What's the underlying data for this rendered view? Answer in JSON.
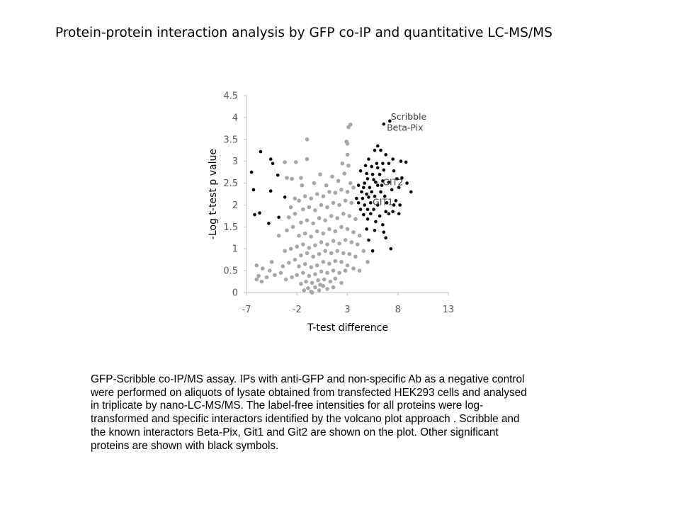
{
  "slide": {
    "title": "Protein-protein interaction analysis by GFP co-IP and quantitative LC-MS/MS",
    "caption_lines": [
      "GFP-Scribble co-IP/MS assay. IPs with anti-GFP and non-specific Ab as a negative control",
      "were performed on aliquots of lysate obtained from transfected HEK293 cells and analysed",
      "in triplicate by nano-LC-MS/MS. The label-free intensities for all proteins were log-",
      "transformed and specific interactors identified by the volcano plot approach . Scribble and",
      "the known interactors Beta-Pix, Git1 and Git2 are shown on the plot. Other significant",
      "proteins are shown with black symbols."
    ]
  },
  "chart_data": {
    "type": "scatter",
    "title": "",
    "xlabel": "T-test difference",
    "ylabel": "-Log t-test p value",
    "xlim": [
      -7,
      13
    ],
    "ylim": [
      0,
      4.5
    ],
    "x_ticks": [
      "-7",
      "-2",
      "3",
      "8",
      "13"
    ],
    "y_ticks": [
      "0",
      "0.5",
      "1",
      "1.5",
      "2",
      "2.5",
      "3",
      "3.5",
      "4",
      "4.5"
    ],
    "grid": false,
    "legend": "none",
    "colors": {
      "significant": "#000000",
      "non_significant": "#a6a6a6",
      "axis": "#bfbfbf"
    },
    "annotations": [
      {
        "text": "Scribble",
        "x": 7.3,
        "y": 3.95
      },
      {
        "text": "Beta-Pix",
        "x": 6.9,
        "y": 3.7
      },
      {
        "text": "GIT2",
        "x": 6.5,
        "y": 2.45
      },
      {
        "text": "GIT1",
        "x": 5.5,
        "y": 2.0
      }
    ],
    "series": [
      {
        "name": "significant",
        "points": [
          [
            7.2,
            3.92
          ],
          [
            6.6,
            3.85
          ],
          [
            6.0,
            3.35
          ],
          [
            5.7,
            3.25
          ],
          [
            6.3,
            3.25
          ],
          [
            6.8,
            3.15
          ],
          [
            7.5,
            3.05
          ],
          [
            8.3,
            3.0
          ],
          [
            8.8,
            2.98
          ],
          [
            5.1,
            3.05
          ],
          [
            5.9,
            2.95
          ],
          [
            6.5,
            2.95
          ],
          [
            7.1,
            2.95
          ],
          [
            4.8,
            2.9
          ],
          [
            5.4,
            2.88
          ],
          [
            6.0,
            2.85
          ],
          [
            6.6,
            2.8
          ],
          [
            4.3,
            2.78
          ],
          [
            4.9,
            2.72
          ],
          [
            5.5,
            2.7
          ],
          [
            6.2,
            2.7
          ],
          [
            7.6,
            2.78
          ],
          [
            5.0,
            2.6
          ],
          [
            5.6,
            2.58
          ],
          [
            4.7,
            2.5
          ],
          [
            5.8,
            2.52
          ],
          [
            6.5,
            2.55
          ],
          [
            7.1,
            2.52
          ],
          [
            7.9,
            2.6
          ],
          [
            8.4,
            2.62
          ],
          [
            8.9,
            2.5
          ],
          [
            9.3,
            2.3
          ],
          [
            4.1,
            2.45
          ],
          [
            4.6,
            2.4
          ],
          [
            5.2,
            2.4
          ],
          [
            6.0,
            2.45
          ],
          [
            6.4,
            2.45
          ],
          [
            4.4,
            2.3
          ],
          [
            4.9,
            2.25
          ],
          [
            5.4,
            2.3
          ],
          [
            6.3,
            2.3
          ],
          [
            7.4,
            2.35
          ],
          [
            8.1,
            2.4
          ],
          [
            3.9,
            2.15
          ],
          [
            4.5,
            2.15
          ],
          [
            5.1,
            2.18
          ],
          [
            5.7,
            2.2
          ],
          [
            6.7,
            2.2
          ],
          [
            7.8,
            2.1
          ],
          [
            4.1,
            2.05
          ],
          [
            4.7,
            2.0
          ],
          [
            5.3,
            2.05
          ],
          [
            6.0,
            2.0
          ],
          [
            6.9,
            2.05
          ],
          [
            7.6,
            2.0
          ],
          [
            8.2,
            2.0
          ],
          [
            4.3,
            1.9
          ],
          [
            5.0,
            1.9
          ],
          [
            5.6,
            1.9
          ],
          [
            6.8,
            1.85
          ],
          [
            7.5,
            1.85
          ],
          [
            4.6,
            1.78
          ],
          [
            5.3,
            1.8
          ],
          [
            6.2,
            1.75
          ],
          [
            7.1,
            1.8
          ],
          [
            8.1,
            1.8
          ],
          [
            5.0,
            1.68
          ],
          [
            5.8,
            1.62
          ],
          [
            6.5,
            1.55
          ],
          [
            4.9,
            1.45
          ],
          [
            5.7,
            1.42
          ],
          [
            6.6,
            1.38
          ],
          [
            5.1,
            1.2
          ],
          [
            6.8,
            1.25
          ],
          [
            5.5,
            0.95
          ],
          [
            7.3,
            1.0
          ],
          [
            -5.6,
            3.22
          ],
          [
            -4.6,
            3.05
          ],
          [
            -4.4,
            2.95
          ],
          [
            -6.5,
            2.75
          ],
          [
            -3.9,
            2.68
          ],
          [
            -6.3,
            2.35
          ],
          [
            -4.6,
            2.32
          ],
          [
            -3.2,
            2.18
          ],
          [
            -6.2,
            1.78
          ],
          [
            -5.7,
            1.82
          ],
          [
            -4.8,
            1.58
          ],
          [
            -3.8,
            1.72
          ]
        ]
      },
      {
        "name": "non_significant",
        "points": [
          [
            -1.3,
            0.05
          ],
          [
            -0.9,
            0.1
          ],
          [
            -0.6,
            0.02
          ],
          [
            -0.2,
            0.12
          ],
          [
            0.2,
            0.05
          ],
          [
            0.6,
            0.15
          ],
          [
            1.0,
            0.08
          ],
          [
            -1.6,
            0.2
          ],
          [
            -1.1,
            0.25
          ],
          [
            -0.5,
            0.22
          ],
          [
            0.1,
            0.28
          ],
          [
            0.7,
            0.3
          ],
          [
            1.3,
            0.25
          ],
          [
            1.8,
            0.32
          ],
          [
            -2.0,
            0.4
          ],
          [
            -1.4,
            0.45
          ],
          [
            -0.8,
            0.38
          ],
          [
            -0.2,
            0.42
          ],
          [
            0.4,
            0.48
          ],
          [
            1.0,
            0.45
          ],
          [
            1.6,
            0.5
          ],
          [
            2.2,
            0.45
          ],
          [
            2.8,
            0.5
          ],
          [
            -2.5,
            0.35
          ],
          [
            -3.1,
            0.3
          ],
          [
            -3.6,
            0.45
          ],
          [
            -4.2,
            0.4
          ],
          [
            -4.7,
            0.5
          ],
          [
            -5.0,
            0.35
          ],
          [
            -5.4,
            0.55
          ],
          [
            -5.8,
            0.38
          ],
          [
            -6.0,
            0.62
          ],
          [
            -1.8,
            0.6
          ],
          [
            -1.2,
            0.65
          ],
          [
            -0.6,
            0.58
          ],
          [
            0.0,
            0.62
          ],
          [
            0.6,
            0.7
          ],
          [
            1.2,
            0.66
          ],
          [
            1.8,
            0.72
          ],
          [
            2.4,
            0.7
          ],
          [
            3.0,
            0.62
          ],
          [
            3.6,
            0.55
          ],
          [
            4.2,
            0.5
          ],
          [
            -2.2,
            0.75
          ],
          [
            -2.8,
            0.68
          ],
          [
            -3.4,
            0.6
          ],
          [
            -1.6,
            0.85
          ],
          [
            -1.0,
            0.9
          ],
          [
            -0.4,
            0.82
          ],
          [
            0.2,
            0.88
          ],
          [
            0.8,
            0.95
          ],
          [
            1.4,
            0.9
          ],
          [
            2.0,
            0.95
          ],
          [
            2.6,
            0.9
          ],
          [
            3.2,
            0.88
          ],
          [
            3.8,
            0.82
          ],
          [
            -2.0,
            1.05
          ],
          [
            -1.4,
            1.1
          ],
          [
            -0.8,
            1.02
          ],
          [
            -0.2,
            1.08
          ],
          [
            0.4,
            1.15
          ],
          [
            1.0,
            1.1
          ],
          [
            1.6,
            1.18
          ],
          [
            2.2,
            1.12
          ],
          [
            2.8,
            1.2
          ],
          [
            3.4,
            1.15
          ],
          [
            -2.6,
            1.0
          ],
          [
            -3.2,
            0.95
          ],
          [
            -1.8,
            1.3
          ],
          [
            -1.2,
            1.35
          ],
          [
            -0.6,
            1.28
          ],
          [
            0.0,
            1.4
          ],
          [
            0.6,
            1.35
          ],
          [
            1.2,
            1.45
          ],
          [
            1.8,
            1.4
          ],
          [
            2.4,
            1.5
          ],
          [
            3.0,
            1.45
          ],
          [
            3.6,
            1.38
          ],
          [
            4.2,
            1.3
          ],
          [
            -2.4,
            1.5
          ],
          [
            -3.0,
            1.42
          ],
          [
            -3.8,
            1.3
          ],
          [
            -1.6,
            1.6
          ],
          [
            -1.0,
            1.65
          ],
          [
            -0.4,
            1.58
          ],
          [
            0.2,
            1.7
          ],
          [
            0.8,
            1.65
          ],
          [
            1.4,
            1.75
          ],
          [
            2.0,
            1.7
          ],
          [
            2.6,
            1.8
          ],
          [
            3.2,
            1.75
          ],
          [
            3.8,
            1.68
          ],
          [
            -2.2,
            1.8
          ],
          [
            -2.8,
            1.72
          ],
          [
            -1.4,
            1.9
          ],
          [
            -0.8,
            1.95
          ],
          [
            -0.2,
            1.88
          ],
          [
            0.4,
            2.0
          ],
          [
            1.0,
            1.95
          ],
          [
            1.6,
            2.05
          ],
          [
            2.2,
            2.0
          ],
          [
            2.8,
            2.1
          ],
          [
            3.4,
            2.05
          ],
          [
            -1.8,
            2.1
          ],
          [
            -1.2,
            2.2
          ],
          [
            -0.6,
            2.15
          ],
          [
            0.0,
            2.25
          ],
          [
            0.6,
            2.2
          ],
          [
            1.2,
            2.3
          ],
          [
            1.8,
            2.28
          ],
          [
            2.4,
            2.35
          ],
          [
            3.0,
            2.3
          ],
          [
            3.6,
            2.4
          ],
          [
            -1.5,
            2.45
          ],
          [
            -0.3,
            2.5
          ],
          [
            0.9,
            2.45
          ],
          [
            2.1,
            2.55
          ],
          [
            3.3,
            2.5
          ],
          [
            -2.5,
            2.6
          ],
          [
            -1.6,
            2.62
          ],
          [
            0.3,
            2.7
          ],
          [
            1.5,
            2.65
          ],
          [
            2.7,
            2.72
          ],
          [
            3.1,
            2.9
          ],
          [
            2.5,
            2.95
          ],
          [
            -2.1,
            2.98
          ],
          [
            -3.2,
            2.98
          ],
          [
            -1.0,
            3.05
          ],
          [
            3.0,
            3.15
          ],
          [
            -3.0,
            2.62
          ],
          [
            -1.0,
            3.5
          ],
          [
            3.0,
            3.4
          ],
          [
            3.1,
            3.78
          ],
          [
            3.3,
            3.84
          ],
          [
            2.9,
            3.45
          ],
          [
            -2.2,
            2.15
          ],
          [
            -2.6,
            1.95
          ],
          [
            -4.5,
            0.7
          ],
          [
            -5.5,
            0.25
          ],
          [
            -6.0,
            0.3
          ],
          [
            4.6,
            0.95
          ],
          [
            5.0,
            0.7
          ],
          [
            4.0,
            1.1
          ],
          [
            -0.5,
            0.0
          ],
          [
            0.3,
            0.18
          ],
          [
            1.6,
            0.12
          ],
          [
            2.4,
            0.22
          ]
        ]
      }
    ]
  }
}
